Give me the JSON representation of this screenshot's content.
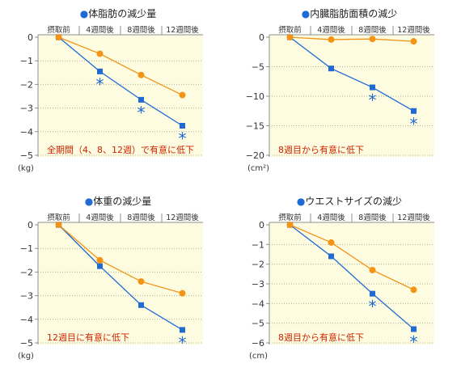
{
  "colors": {
    "plot_background": "#fdfce0",
    "gridline": "#b8b196",
    "axis": "#8f8f8f",
    "title_bullet": "#1f6ad3",
    "annotation": "#cc2200"
  },
  "chart_data": [
    {
      "type": "line",
      "bullet": "●",
      "title": "体脂肪の減少量",
      "categories": [
        "摂取前",
        "4週間後",
        "8週間後",
        "12週間後"
      ],
      "ylim": [
        -5,
        0
      ],
      "yticks": [
        0,
        -1,
        -2,
        -3,
        -4,
        -5
      ],
      "ytick_labels": [
        "0",
        "−1",
        "−2",
        "−3",
        "−4",
        "−5"
      ],
      "unit": "(kg)",
      "grid": true,
      "series": [
        {
          "color": "#1f6ad3",
          "marker": "square",
          "values": [
            0,
            -1.45,
            -2.65,
            -3.75
          ],
          "significant": [
            false,
            true,
            true,
            true
          ]
        },
        {
          "color": "#f39416",
          "marker": "circle",
          "values": [
            0,
            -0.7,
            -1.6,
            -2.45
          ]
        }
      ],
      "significance_mark": "*",
      "annotation": "全期間（4、8、12週）で有意に低下"
    },
    {
      "type": "line",
      "bullet": "●",
      "title": "内臓脂肪面積の減少",
      "categories": [
        "摂取前",
        "4週間後",
        "8週間後",
        "12週間後"
      ],
      "ylim": [
        -20,
        0
      ],
      "yticks": [
        0,
        -5,
        -10,
        -15,
        -20
      ],
      "ytick_labels": [
        "0",
        "−5",
        "−10",
        "−15",
        "−20"
      ],
      "unit": "(cm²)",
      "grid": true,
      "series": [
        {
          "color": "#1f6ad3",
          "marker": "square",
          "values": [
            0,
            -5.3,
            -8.5,
            -12.5
          ],
          "significant": [
            false,
            false,
            true,
            true
          ]
        },
        {
          "color": "#f39416",
          "marker": "circle",
          "values": [
            0,
            -0.4,
            -0.3,
            -0.7
          ]
        }
      ],
      "significance_mark": "*",
      "annotation": "8週目から有意に低下"
    },
    {
      "type": "line",
      "bullet": "●",
      "title": "体重の減少量",
      "categories": [
        "摂取前",
        "4週間後",
        "8週間後",
        "12週間後"
      ],
      "ylim": [
        -5,
        0
      ],
      "yticks": [
        0,
        -1,
        -2,
        -3,
        -4,
        -5
      ],
      "ytick_labels": [
        "0",
        "−1",
        "−2",
        "−3",
        "−4",
        "−5"
      ],
      "unit": "(kg)",
      "grid": true,
      "series": [
        {
          "color": "#1f6ad3",
          "marker": "square",
          "values": [
            0,
            -1.75,
            -3.4,
            -4.45
          ],
          "significant": [
            false,
            false,
            false,
            true
          ]
        },
        {
          "color": "#f39416",
          "marker": "circle",
          "values": [
            0,
            -1.5,
            -2.4,
            -2.9
          ]
        }
      ],
      "significance_mark": "*",
      "annotation": "12週目に有意に低下"
    },
    {
      "type": "line",
      "bullet": "●",
      "title": "ウエストサイズの減少",
      "categories": [
        "摂取前",
        "4週間後",
        "8週間後",
        "12週間後"
      ],
      "ylim": [
        -6,
        0
      ],
      "yticks": [
        0,
        -1,
        -2,
        -3,
        -4,
        -5,
        -6
      ],
      "ytick_labels": [
        "0",
        "−1",
        "−2",
        "−3",
        "−4",
        "−5",
        "−6"
      ],
      "unit": "(cm)",
      "grid": true,
      "series": [
        {
          "color": "#1f6ad3",
          "marker": "square",
          "values": [
            0,
            -1.6,
            -3.5,
            -5.3
          ],
          "significant": [
            false,
            false,
            true,
            true
          ]
        },
        {
          "color": "#f39416",
          "marker": "circle",
          "values": [
            0,
            -0.9,
            -2.3,
            -3.3
          ]
        }
      ],
      "significance_mark": "*",
      "annotation": "8週目から有意に低下"
    }
  ]
}
